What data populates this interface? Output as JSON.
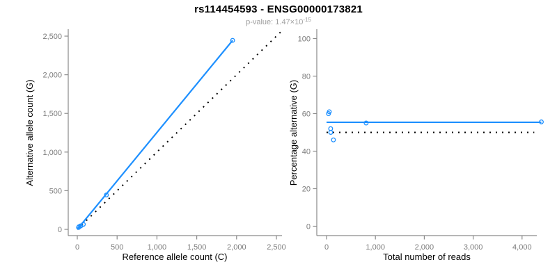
{
  "header": {
    "title": "rs114454593 - ENSG00000173821",
    "p_value_prefix": "p-value: 1.47×10",
    "p_value_exponent": "-15"
  },
  "colors": {
    "accent_blue": "#1e90ff",
    "line_black": "#000000",
    "axis_gray": "#8a8a8a",
    "tick_text_gray": "#7b7b7b",
    "subtitle_gray": "#9e9e9e"
  },
  "chart_data": [
    {
      "type": "scatter",
      "name": "allele-counts-panel",
      "xlabel": "Reference allele count (C)",
      "ylabel": "Alternative allele count (G)",
      "xlim": [
        0,
        2500
      ],
      "ylim": [
        0,
        2500
      ],
      "xticks": [
        0,
        500,
        1000,
        1500,
        2000,
        2500
      ],
      "yticks": [
        0,
        500,
        1000,
        1500,
        2000,
        2500
      ],
      "grid": false,
      "points": [
        [
          16,
          24
        ],
        [
          22,
          34
        ],
        [
          40,
          44
        ],
        [
          43,
          43
        ],
        [
          76,
          65
        ],
        [
          365,
          445
        ],
        [
          1950,
          2445
        ]
      ],
      "lines": [
        {
          "name": "identity-line",
          "style": "dotted",
          "color": "#000000",
          "x1": 0,
          "y1": 0,
          "x2": 2560,
          "y2": 2560
        },
        {
          "name": "fit-line",
          "style": "solid",
          "color": "#1e90ff",
          "x1": 0,
          "y1": 0,
          "x2": 1950,
          "y2": 2445
        }
      ]
    },
    {
      "type": "scatter",
      "name": "percentage-panel",
      "xlabel": "Total number of reads",
      "ylabel": "Percentage alternative (G)",
      "xlim": [
        0,
        4400
      ],
      "ylim": [
        0,
        100
      ],
      "xticks": [
        0,
        1000,
        2000,
        3000,
        4000
      ],
      "yticks": [
        0,
        20,
        40,
        60,
        80,
        100
      ],
      "grid": false,
      "points": [
        [
          40,
          60
        ],
        [
          56,
          61
        ],
        [
          84,
          52
        ],
        [
          86,
          50
        ],
        [
          141,
          46
        ],
        [
          810,
          55
        ],
        [
          4395,
          55.6
        ]
      ],
      "lines": [
        {
          "name": "null-line",
          "style": "dotted",
          "color": "#000000",
          "x1": 0,
          "y1": 50,
          "x2": 4250,
          "y2": 50
        },
        {
          "name": "mean-line",
          "style": "solid",
          "color": "#1e90ff",
          "x1": 0,
          "y1": 55.4,
          "x2": 4395,
          "y2": 55.4
        }
      ]
    }
  ]
}
